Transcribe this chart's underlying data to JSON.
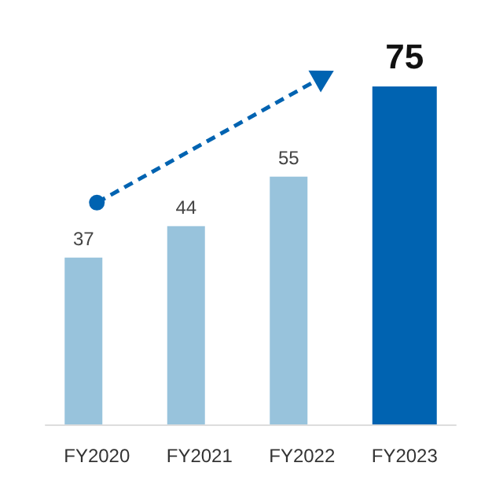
{
  "chart_data": {
    "type": "bar",
    "categories": [
      "FY2020",
      "FY2021",
      "FY2022",
      "FY2023"
    ],
    "values": [
      37,
      44,
      55,
      75
    ],
    "colors": [
      "#98c3dc",
      "#98c3dc",
      "#98c3dc",
      "#0063b1"
    ],
    "data_labels": true
  }
}
